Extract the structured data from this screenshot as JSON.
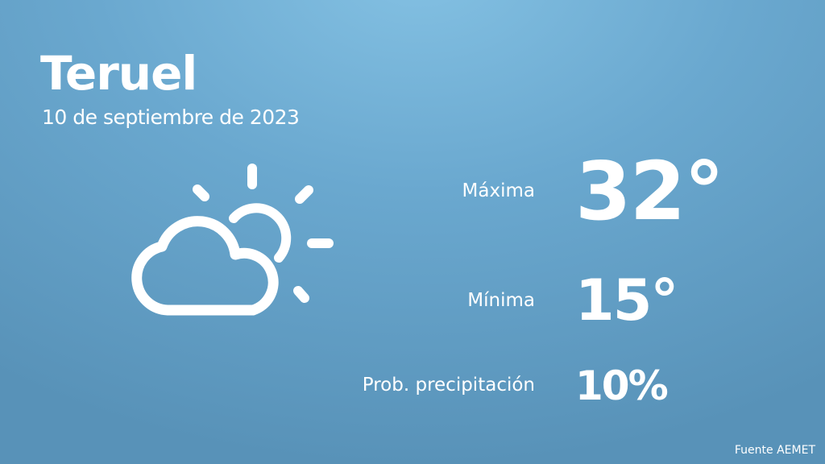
{
  "location": {
    "city": "Teruel",
    "date": "10 de septiembre de 2023"
  },
  "weather_icon": "partly-cloudy-icon",
  "forecast": {
    "max_label": "Máxima",
    "max_value": "32°",
    "min_label": "Mínima",
    "min_value": "15°",
    "precip_label": "Prob. precipitación",
    "precip_value": "10%"
  },
  "source": "Fuente AEMET"
}
